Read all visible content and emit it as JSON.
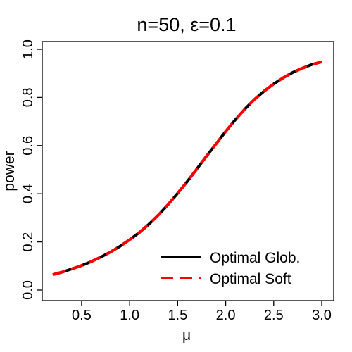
{
  "chart_data": {
    "type": "line",
    "title": "n=50, ε=0.1",
    "xlabel": "μ",
    "ylabel": "power",
    "xlim": [
      0.2,
      3.0
    ],
    "ylim": [
      0.0,
      1.0
    ],
    "xticks": [
      0.5,
      1.0,
      1.5,
      2.0,
      2.5,
      3.0
    ],
    "xtick_labels": [
      "0.5",
      "1.0",
      "1.5",
      "2.0",
      "2.5",
      "3.0"
    ],
    "yticks": [
      0.0,
      0.2,
      0.4,
      0.6,
      0.8,
      1.0
    ],
    "ytick_labels": [
      "0.0",
      "0.2",
      "0.4",
      "0.6",
      "0.8",
      "1.0"
    ],
    "grid": false,
    "legend_position": "bottom-right",
    "x": [
      0.2,
      0.3,
      0.4,
      0.5,
      0.6,
      0.7,
      0.8,
      0.9,
      1.0,
      1.1,
      1.2,
      1.3,
      1.4,
      1.5,
      1.6,
      1.7,
      1.8,
      1.9,
      2.0,
      2.1,
      2.2,
      2.3,
      2.4,
      2.5,
      2.6,
      2.7,
      2.8,
      2.9,
      3.0
    ],
    "series": [
      {
        "name": "Optimal Glob.",
        "color": "#000000",
        "dash": "solid",
        "values": [
          0.064,
          0.075,
          0.088,
          0.102,
          0.118,
          0.137,
          0.158,
          0.182,
          0.209,
          0.239,
          0.273,
          0.312,
          0.355,
          0.402,
          0.451,
          0.503,
          0.556,
          0.607,
          0.659,
          0.707,
          0.752,
          0.792,
          0.826,
          0.856,
          0.882,
          0.904,
          0.922,
          0.937,
          0.948
        ]
      },
      {
        "name": "Optimal Soft",
        "color": "#ff0000",
        "dash": "dashed",
        "values": [
          0.064,
          0.075,
          0.088,
          0.102,
          0.118,
          0.137,
          0.158,
          0.182,
          0.209,
          0.239,
          0.273,
          0.312,
          0.355,
          0.402,
          0.451,
          0.503,
          0.556,
          0.607,
          0.659,
          0.707,
          0.752,
          0.792,
          0.826,
          0.856,
          0.882,
          0.904,
          0.922,
          0.937,
          0.948
        ]
      }
    ]
  }
}
